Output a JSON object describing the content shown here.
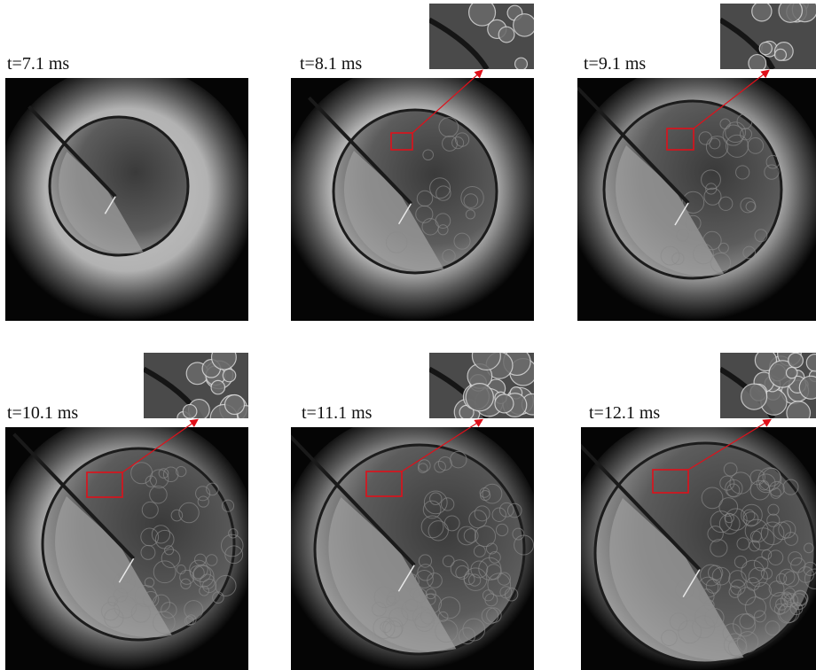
{
  "figure": {
    "panels": [
      {
        "time_label": "t=7.1 ms",
        "has_zoom_inset": false
      },
      {
        "time_label": "t=8.1 ms",
        "has_zoom_inset": true
      },
      {
        "time_label": "t=9.1 ms",
        "has_zoom_inset": true
      },
      {
        "time_label": "t=10.1 ms",
        "has_zoom_inset": true
      },
      {
        "time_label": "t=11.1 ms",
        "has_zoom_inset": true
      },
      {
        "time_label": "t=12.1 ms",
        "has_zoom_inset": true
      }
    ],
    "colors": {
      "highlight_box": "#e0101a",
      "arrow": "#e0101a",
      "background": "#ffffff"
    }
  }
}
